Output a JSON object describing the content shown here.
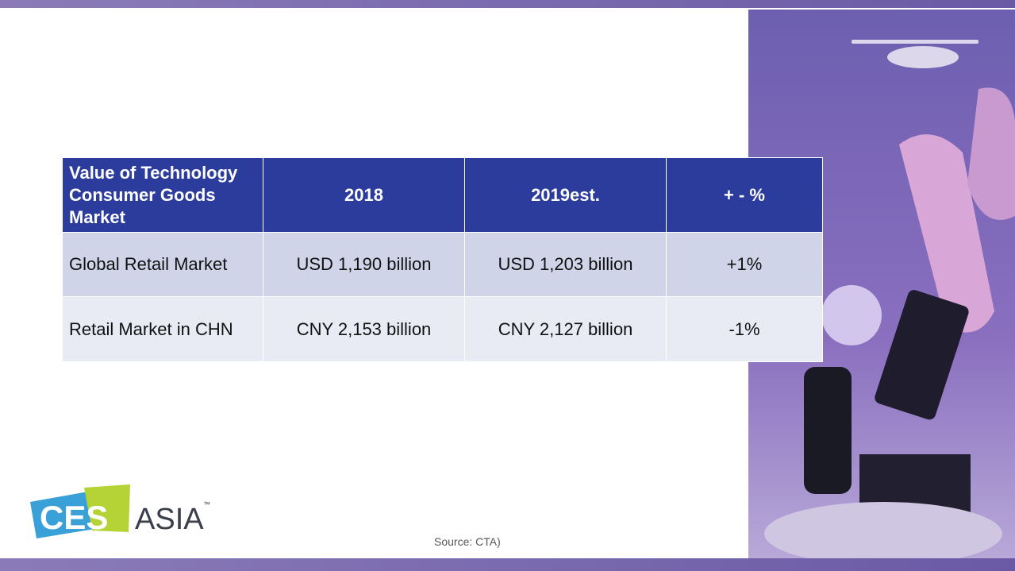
{
  "table": {
    "header": [
      "Value of Technology Consumer Goods Market",
      "2018",
      "2019est.",
      "+ - %"
    ],
    "rows": [
      [
        "Global Retail Market",
        "USD 1,190 billion",
        "USD 1,203 billion",
        "+1%"
      ],
      [
        "Retail Market in CHN",
        "CNY 2,153 billion",
        "CNY 2,127 billion",
        "-1%"
      ]
    ]
  },
  "source": "Source: CTA)",
  "logo": {
    "brand": "CES",
    "region": "ASIA",
    "mark": "™"
  }
}
